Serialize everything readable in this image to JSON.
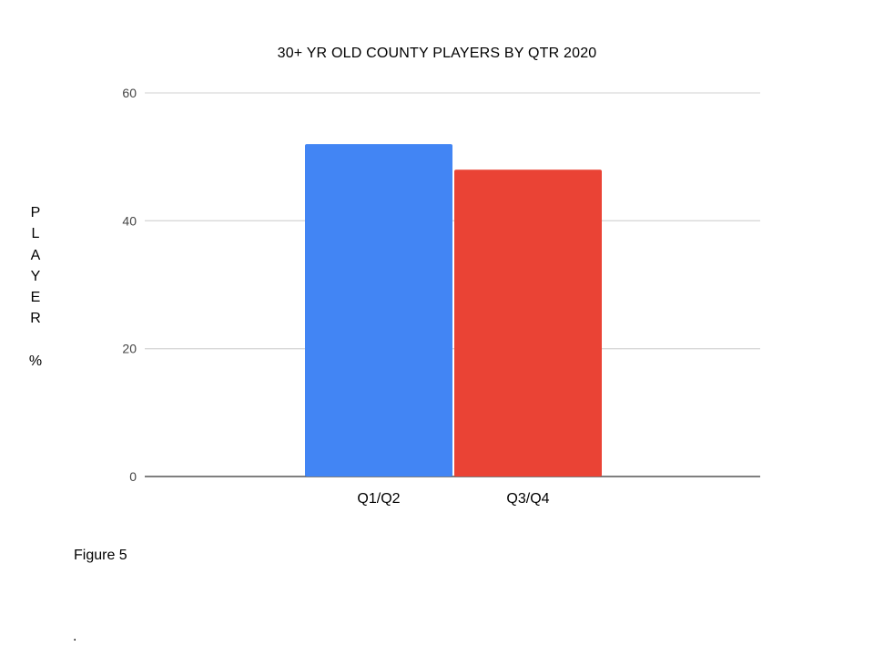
{
  "chart_data": {
    "type": "bar",
    "title": "30+ YR OLD COUNTY PLAYERS BY QTR 2020",
    "ylabel": "PLAYER %",
    "xlabel": "",
    "categories": [
      "Q1/Q2",
      "Q3/Q4"
    ],
    "values": [
      52,
      48
    ],
    "colors": [
      "#4285f4",
      "#ea4335"
    ],
    "ylim": [
      0,
      60
    ],
    "yticks": [
      0,
      20,
      40,
      60
    ],
    "grid": true
  },
  "caption": "Figure 5",
  "footer_mark": "."
}
